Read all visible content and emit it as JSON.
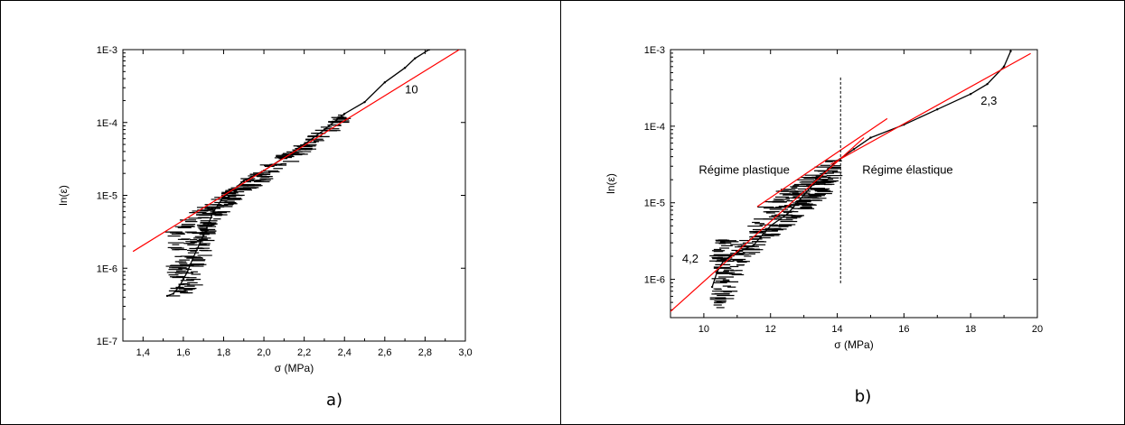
{
  "chart_data": [
    {
      "type": "scatter",
      "panel_caption": "a)",
      "xlabel": "σ (MPa)",
      "ylabel": "ln(ε)",
      "xlim": [
        1.3,
        3.0
      ],
      "ylim_log10": [
        -7,
        -3
      ],
      "yscale": "log",
      "x_ticks": [
        1.4,
        1.6,
        1.8,
        2.0,
        2.2,
        2.4,
        2.6,
        2.8,
        3.0
      ],
      "x_tick_labels": [
        "1,4",
        "1,6",
        "1,8",
        "2,0",
        "2,2",
        "2,4",
        "2,6",
        "2,8",
        "3,0"
      ],
      "y_ticks_log10": [
        -7,
        -6,
        -5,
        -4,
        -3
      ],
      "y_tick_labels": [
        "1E-7",
        "1E-6",
        "1E-5",
        "1E-4",
        "1E-3"
      ],
      "series": [
        {
          "kind": "data",
          "color": "#000000",
          "points": [
            [
              1.52,
              -6.38
            ],
            [
              1.55,
              -6.35
            ],
            [
              1.58,
              -6.25
            ],
            [
              1.6,
              -6.15
            ],
            [
              1.62,
              -6.05
            ],
            [
              1.65,
              -5.85
            ],
            [
              1.7,
              -5.55
            ],
            [
              1.75,
              -5.22
            ],
            [
              1.8,
              -5.02
            ],
            [
              1.85,
              -4.92
            ],
            [
              1.9,
              -4.8
            ],
            [
              2.0,
              -4.66
            ],
            [
              2.1,
              -4.48
            ],
            [
              2.2,
              -4.3
            ],
            [
              2.3,
              -4.1
            ],
            [
              2.4,
              -3.88
            ],
            [
              2.5,
              -3.72
            ],
            [
              2.6,
              -3.45
            ],
            [
              2.7,
              -3.25
            ],
            [
              2.75,
              -3.12
            ],
            [
              2.82,
              -3.0
            ]
          ],
          "scatter_band": [
            [
              1.55,
              -5.45,
              -6.4
            ],
            [
              1.6,
              -5.35,
              -6.4
            ],
            [
              1.65,
              -5.25,
              -6.3
            ],
            [
              1.7,
              -5.15,
              -5.9
            ],
            [
              1.75,
              -5.05,
              -5.4
            ],
            [
              1.85,
              -4.9,
              -5.1
            ],
            [
              2.0,
              -4.6,
              -4.8
            ],
            [
              2.2,
              -4.28,
              -4.42
            ],
            [
              2.4,
              -3.86,
              -3.98
            ]
          ]
        },
        {
          "kind": "fit",
          "color": "#ff0000",
          "from": [
            1.35,
            -5.77
          ],
          "to": [
            2.97,
            -3.0
          ]
        }
      ],
      "annotations": [
        {
          "text": "10",
          "x": 2.7,
          "y_log10": -3.6
        }
      ]
    },
    {
      "type": "scatter",
      "panel_caption": "b)",
      "xlabel": "σ (MPa)",
      "ylabel": "ln(ε)",
      "xlim": [
        9,
        20
      ],
      "ylim_log10": [
        -6.5,
        -3
      ],
      "yscale": "log",
      "x_ticks": [
        10,
        12,
        14,
        16,
        18,
        20
      ],
      "x_tick_labels": [
        "10",
        "12",
        "14",
        "16",
        "18",
        "20"
      ],
      "y_ticks_log10": [
        -6,
        -5,
        -4,
        -3
      ],
      "y_tick_labels": [
        "1E-6",
        "1E-5",
        "1E-4",
        "1E-3"
      ],
      "series": [
        {
          "kind": "data",
          "color": "#000000",
          "points": [
            [
              10.25,
              -6.1
            ],
            [
              10.4,
              -5.9
            ],
            [
              10.6,
              -5.75
            ],
            [
              10.8,
              -5.7
            ],
            [
              11.0,
              -5.65
            ],
            [
              11.5,
              -5.55
            ],
            [
              12.0,
              -5.3
            ],
            [
              12.5,
              -5.15
            ],
            [
              13.0,
              -4.9
            ],
            [
              13.5,
              -4.65
            ],
            [
              14.0,
              -4.45
            ],
            [
              14.5,
              -4.3
            ],
            [
              15.0,
              -4.15
            ],
            [
              16.0,
              -3.98
            ],
            [
              17.0,
              -3.78
            ],
            [
              18.0,
              -3.58
            ],
            [
              18.5,
              -3.45
            ],
            [
              19.0,
              -3.22
            ],
            [
              19.2,
              -3.02
            ]
          ],
          "scatter_band": [
            [
              10.4,
              -5.5,
              -6.45
            ],
            [
              10.6,
              -5.45,
              -6.3
            ],
            [
              11.2,
              -5.5,
              -5.8
            ],
            [
              12.0,
              -4.95,
              -5.45
            ],
            [
              12.5,
              -4.8,
              -5.3
            ],
            [
              13.0,
              -4.7,
              -5.1
            ],
            [
              13.5,
              -4.55,
              -4.95
            ],
            [
              14.0,
              -4.35,
              -4.6
            ]
          ]
        },
        {
          "kind": "fit",
          "color": "#ff0000",
          "label": "4,2",
          "from": [
            9.0,
            -6.42
          ],
          "to": [
            14.8,
            -4.15
          ]
        },
        {
          "kind": "fit",
          "color": "#ff0000",
          "from": [
            11.6,
            -5.05
          ],
          "to": [
            15.5,
            -3.9
          ]
        },
        {
          "kind": "fit",
          "color": "#ff0000",
          "label": "2,3",
          "from": [
            13.8,
            -4.5
          ],
          "to": [
            19.8,
            -3.05
          ]
        }
      ],
      "vertical_dashed_line": {
        "x": 14.1,
        "y_log10_range": [
          -6.05,
          -3.35
        ]
      },
      "annotations": [
        {
          "text": "Régime plastique",
          "x": 9.85,
          "y_log10": -4.62
        },
        {
          "text": "Régime élastique",
          "x": 14.75,
          "y_log10": -4.62
        },
        {
          "text": "2,3",
          "x": 18.3,
          "y_log10": -3.72
        },
        {
          "text": "4,2",
          "x": 9.35,
          "y_log10": -5.78
        }
      ]
    }
  ]
}
